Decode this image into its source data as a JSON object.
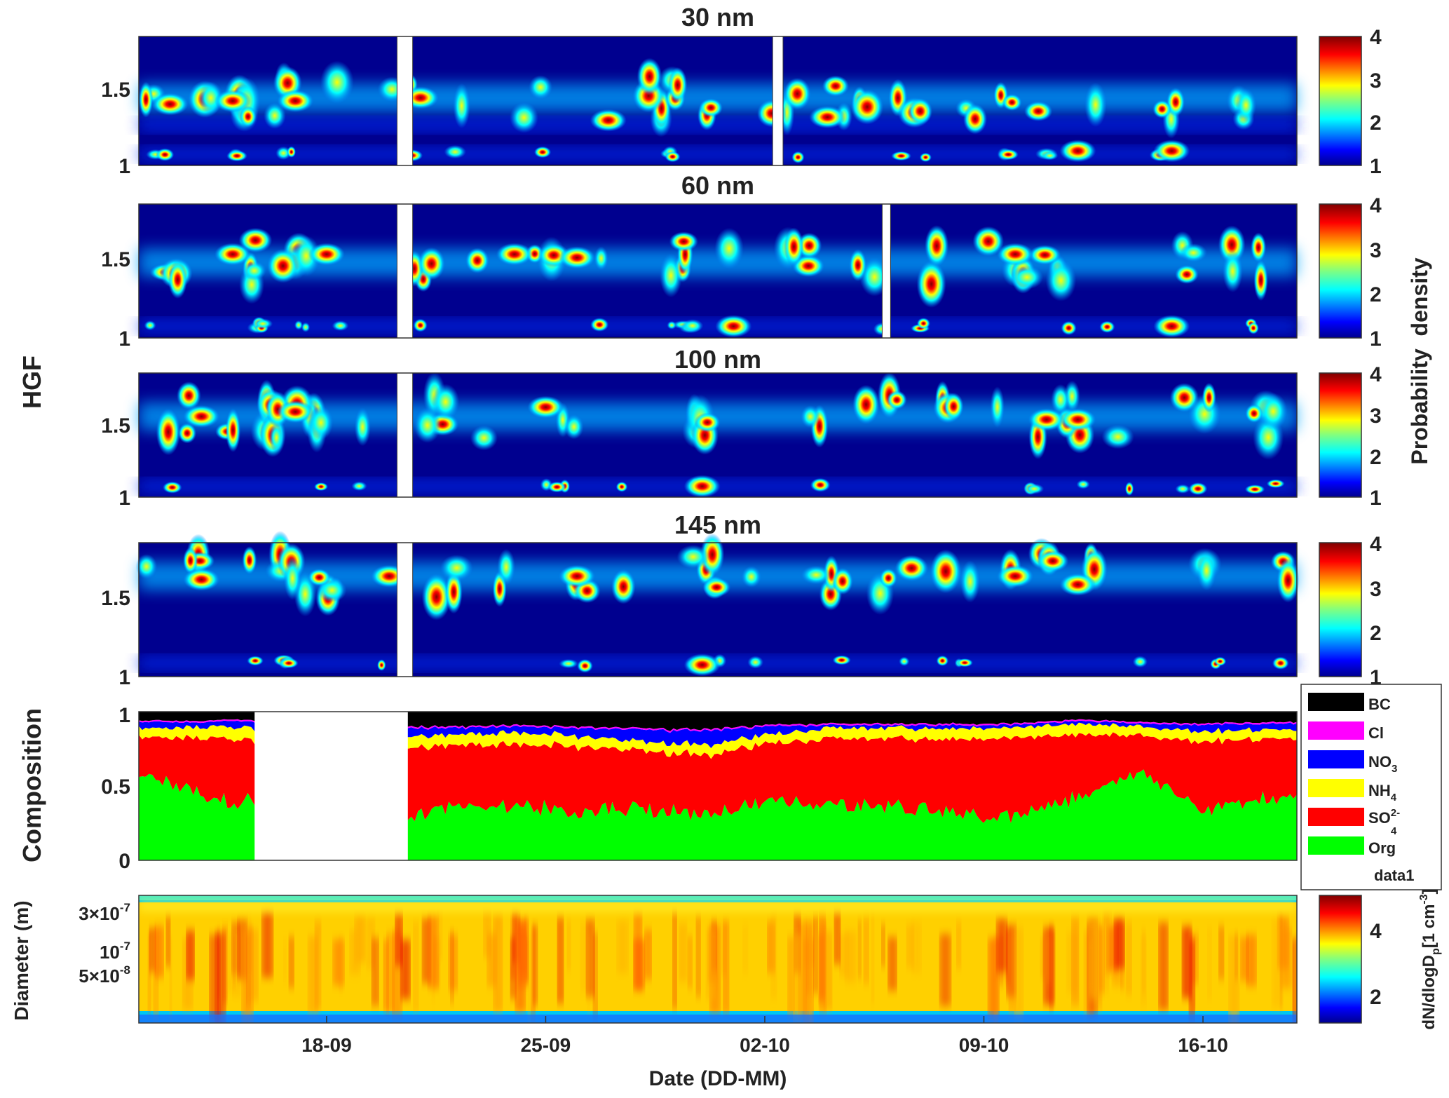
{
  "chart_data": [
    {
      "type": "heatmap",
      "title": "30 nm",
      "ylabel": "HGF",
      "ylim": [
        1,
        1.8
      ],
      "yticks": [
        "1",
        "1.5"
      ],
      "colorbar": {
        "ticks": [
          "1",
          "2",
          "3",
          "4"
        ],
        "range": [
          1,
          4
        ]
      },
      "ridges": [
        1.42,
        1.25,
        1.07
      ],
      "gaps": [
        {
          "start": "20-09 06:00",
          "end": "20-09 18:00"
        },
        {
          "start": "02-10 06:00",
          "end": "02-10 14:00"
        }
      ],
      "hot_spots": [
        {
          "date": "13-09",
          "hgf": 1.38
        },
        {
          "date": "15-09",
          "hgf": 1.4
        },
        {
          "date": "17-09",
          "hgf": 1.4
        },
        {
          "date": "21-09",
          "hgf": 1.42
        },
        {
          "date": "27-09",
          "hgf": 1.28
        },
        {
          "date": "04-10",
          "hgf": 1.3
        },
        {
          "date": "12-10",
          "hgf": 1.09
        },
        {
          "date": "15-10",
          "hgf": 1.09
        }
      ]
    },
    {
      "type": "heatmap",
      "title": "60 nm",
      "ylabel": "HGF",
      "ylim": [
        1,
        1.8
      ],
      "yticks": [
        "1",
        "1.5"
      ],
      "colorbar": {
        "ticks": [
          "1",
          "2",
          "3",
          "4"
        ],
        "range": [
          1,
          4
        ]
      },
      "ridges": [
        1.45,
        1.07
      ],
      "gaps": [
        {
          "start": "20-09 06:00",
          "end": "20-09 18:00"
        },
        {
          "start": "05-10 18:00",
          "end": "06-10 00:00"
        }
      ],
      "hot_spots": [
        {
          "date": "15-09",
          "hgf": 1.5
        },
        {
          "date": "18-09",
          "hgf": 1.5
        },
        {
          "date": "24-09",
          "hgf": 1.5
        },
        {
          "date": "26-09",
          "hgf": 1.48
        },
        {
          "date": "01-10",
          "hgf": 1.07
        },
        {
          "date": "10-10",
          "hgf": 1.5
        },
        {
          "date": "15-10",
          "hgf": 1.07
        }
      ]
    },
    {
      "type": "heatmap",
      "title": "100 nm",
      "ylabel": "HGF",
      "ylim": [
        1,
        1.8
      ],
      "yticks": [
        "1",
        "1.5"
      ],
      "colorbar": {
        "ticks": [
          "1",
          "2",
          "3",
          "4"
        ],
        "range": [
          1,
          4
        ]
      },
      "ridges": [
        1.52,
        1.07
      ],
      "gaps": [
        {
          "start": "20-09 06:00",
          "end": "20-09 18:00"
        }
      ],
      "hot_spots": [
        {
          "date": "14-09",
          "hgf": 1.52
        },
        {
          "date": "17-09",
          "hgf": 1.55
        },
        {
          "date": "25-09",
          "hgf": 1.58
        },
        {
          "date": "30-09",
          "hgf": 1.07
        },
        {
          "date": "11-10",
          "hgf": 1.5
        },
        {
          "date": "12-10",
          "hgf": 1.5
        }
      ]
    },
    {
      "type": "heatmap",
      "title": "145 nm",
      "ylabel": "HGF",
      "ylim": [
        1,
        1.8
      ],
      "yticks": [
        "1",
        "1.5"
      ],
      "colorbar": {
        "ticks": [
          "1",
          "2",
          "3",
          "4"
        ],
        "range": [
          1,
          4
        ]
      },
      "ridges": [
        1.6,
        1.08
      ],
      "gaps": [
        {
          "start": "20-09 06:00",
          "end": "20-09 18:00"
        }
      ],
      "hot_spots": [
        {
          "date": "14-09",
          "hgf": 1.58
        },
        {
          "date": "20-09",
          "hgf": 1.6
        },
        {
          "date": "26-09",
          "hgf": 1.6
        },
        {
          "date": "30-09",
          "hgf": 1.07
        },
        {
          "date": "10-10",
          "hgf": 1.6
        },
        {
          "date": "12-10",
          "hgf": 1.55
        }
      ]
    },
    {
      "type": "area",
      "ylabel": "Composition",
      "ylim": [
        0,
        1
      ],
      "yticks": [
        "0",
        "0.5",
        "1"
      ],
      "gap": {
        "start": "15-09 18:00",
        "end": "20-09 12:00"
      },
      "legend": {
        "placement": "right",
        "entries": [
          {
            "name": "BC",
            "color": "#000000"
          },
          {
            "name": "Cl",
            "color": "#ff00ff"
          },
          {
            "name": "NO",
            "sub": "3",
            "color": "#0000ff"
          },
          {
            "name": "NH",
            "sub": "4",
            "color": "#ffff00"
          },
          {
            "name": "SO",
            "sub": "4",
            "sup": "2-",
            "color": "#ff0000"
          },
          {
            "name": "Org",
            "color": "#00ff00"
          },
          {
            "name": "data1",
            "color": null
          }
        ]
      },
      "x": [
        "12-09",
        "14-09",
        "15-09",
        "20-09",
        "22-09",
        "24-09",
        "26-09",
        "28-09",
        "30-09",
        "02-10",
        "04-10",
        "06-10",
        "08-10",
        "10-10",
        "12-10",
        "14-10",
        "16-10",
        "18-10"
      ],
      "series": [
        {
          "name": "Org",
          "values": [
            0.58,
            0.45,
            0.4,
            0.3,
            0.35,
            0.38,
            0.32,
            0.36,
            0.3,
            0.4,
            0.38,
            0.36,
            0.33,
            0.3,
            0.42,
            0.6,
            0.35,
            0.42
          ]
        },
        {
          "name": "SO4",
          "values": [
            0.25,
            0.38,
            0.42,
            0.45,
            0.42,
            0.4,
            0.45,
            0.38,
            0.4,
            0.38,
            0.44,
            0.46,
            0.49,
            0.52,
            0.43,
            0.24,
            0.45,
            0.4
          ]
        },
        {
          "name": "NH4",
          "values": [
            0.06,
            0.07,
            0.08,
            0.08,
            0.07,
            0.08,
            0.07,
            0.06,
            0.07,
            0.06,
            0.07,
            0.07,
            0.07,
            0.07,
            0.07,
            0.06,
            0.07,
            0.06
          ]
        },
        {
          "name": "NO3",
          "values": [
            0.04,
            0.03,
            0.04,
            0.06,
            0.05,
            0.04,
            0.05,
            0.08,
            0.1,
            0.06,
            0.02,
            0.02,
            0.02,
            0.02,
            0.02,
            0.02,
            0.04,
            0.04
          ]
        },
        {
          "name": "Cl",
          "values": [
            0.01,
            0.01,
            0.01,
            0.01,
            0.01,
            0.01,
            0.01,
            0.01,
            0.01,
            0.01,
            0.01,
            0.01,
            0.01,
            0.01,
            0.01,
            0.01,
            0.01,
            0.01
          ]
        },
        {
          "name": "BC",
          "values": [
            0.06,
            0.06,
            0.05,
            0.1,
            0.1,
            0.09,
            0.1,
            0.11,
            0.12,
            0.09,
            0.08,
            0.08,
            0.08,
            0.08,
            0.05,
            0.07,
            0.08,
            0.07
          ]
        }
      ]
    },
    {
      "type": "heatmap",
      "ylabel": "Diameter (m)",
      "xlabel": "Date (DD-MM)",
      "yscale": "log",
      "ylim": [
        1e-08,
        5e-07
      ],
      "yticks": [
        {
          "value": 3e-07,
          "mantissa": "3",
          "exponent": "-7"
        },
        {
          "value": 1e-07,
          "mantissa": "10",
          "exponent": "-7"
        },
        {
          "value": 5e-08,
          "mantissa": "5",
          "exponent": "-8"
        }
      ],
      "xlim": [
        "12-09",
        "19-10"
      ],
      "xticks": [
        "18-09",
        "25-09",
        "02-10",
        "09-10",
        "16-10"
      ],
      "colorbar": {
        "ticks": [
          "2",
          "4"
        ],
        "range": [
          1,
          5
        ],
        "label": {
          "main": "dN/dlogD",
          "sub": "p",
          "bracket": "[1 cm",
          "exp": "-3",
          "end": "]"
        }
      }
    }
  ],
  "side_labels": {
    "probability": "Probability  density"
  },
  "colors": {
    "jet_low": "#00008f",
    "jet_mid": "#00ffff",
    "jet_high": "#800000",
    "axis": "#333333"
  }
}
